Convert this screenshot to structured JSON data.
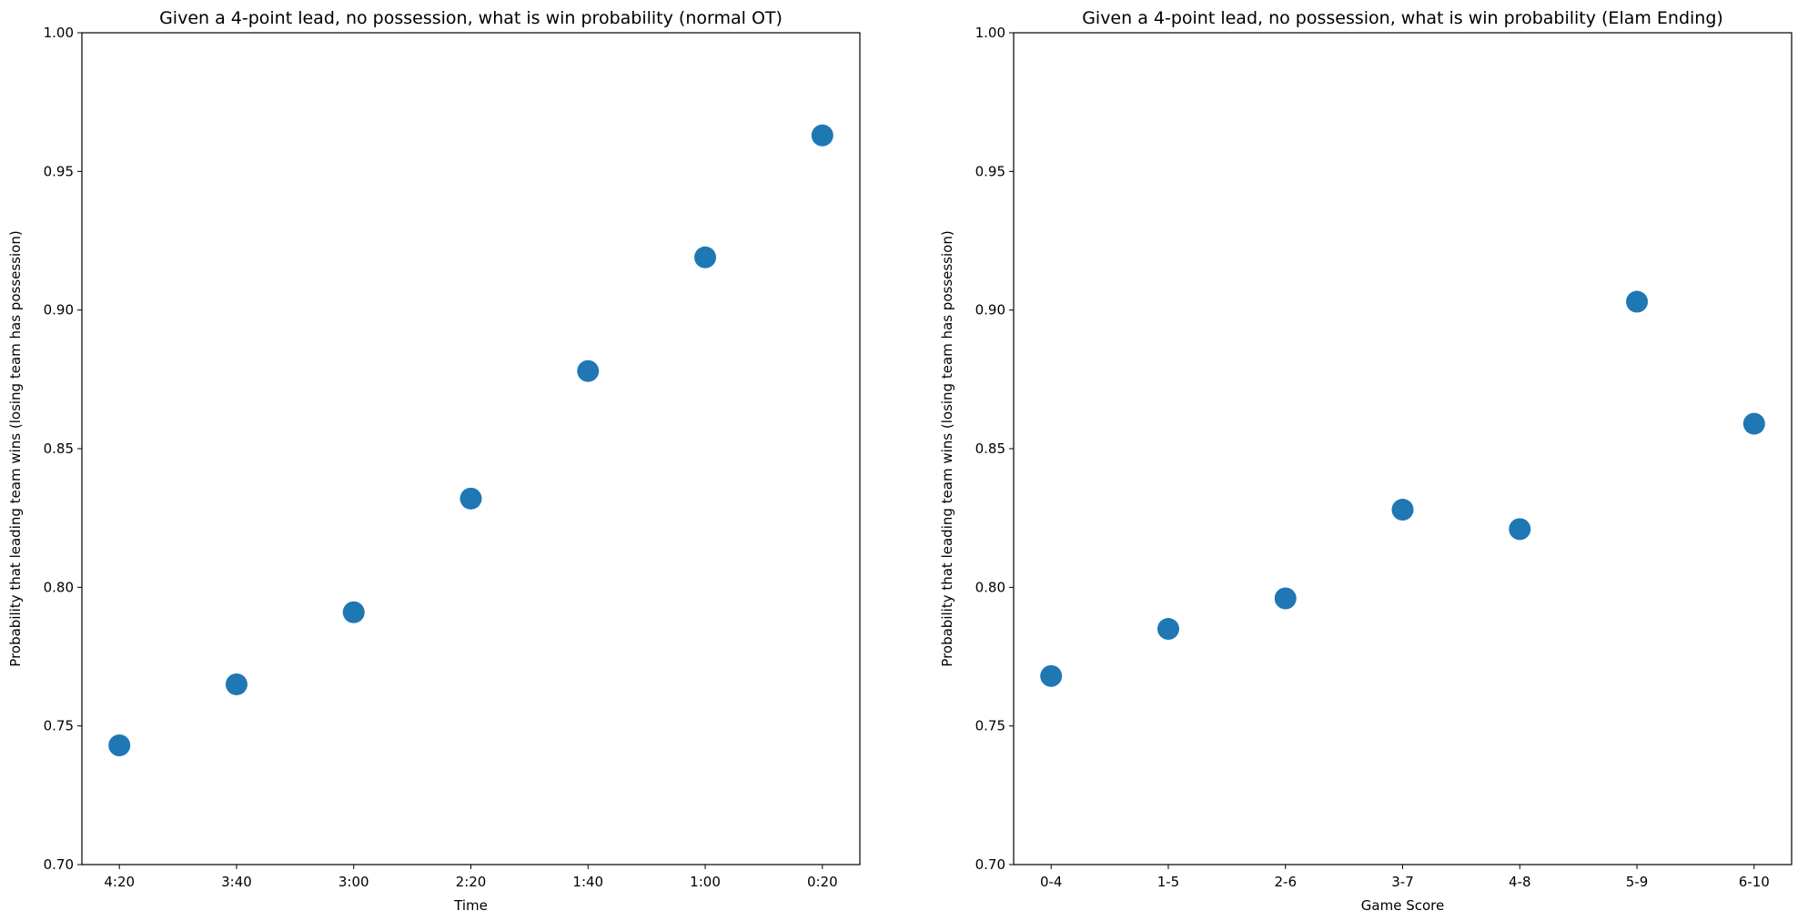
{
  "chart_data": [
    {
      "type": "scatter",
      "title": "Given a 4-point lead, no possession, what is win probability (normal OT)",
      "xlabel": "Time",
      "ylabel": "Probability that leading team wins (losing team has possession)",
      "categories": [
        "4:20",
        "3:40",
        "3:00",
        "2:20",
        "1:40",
        "1:00",
        "0:20"
      ],
      "values": [
        0.743,
        0.765,
        0.791,
        0.832,
        0.878,
        0.919,
        0.963
      ],
      "ylim": [
        0.7,
        1.0
      ],
      "yticks": [
        "0.70",
        "0.75",
        "0.80",
        "0.85",
        "0.90",
        "0.95",
        "1.00"
      ],
      "grid": false,
      "color": "#1f77b4"
    },
    {
      "type": "scatter",
      "title": "Given a 4-point lead, no possession, what is win probability (Elam Ending)",
      "xlabel": "Game Score",
      "ylabel": "Probability that leading team wins (losing team has possession)",
      "categories": [
        "0-4",
        "1-5",
        "2-6",
        "3-7",
        "4-8",
        "5-9",
        "6-10"
      ],
      "values": [
        0.768,
        0.785,
        0.796,
        0.828,
        0.821,
        0.903,
        0.859
      ],
      "ylim": [
        0.7,
        1.0
      ],
      "yticks": [
        "0.70",
        "0.75",
        "0.80",
        "0.85",
        "0.90",
        "0.95",
        "1.00"
      ],
      "grid": false,
      "color": "#1f77b4"
    }
  ]
}
